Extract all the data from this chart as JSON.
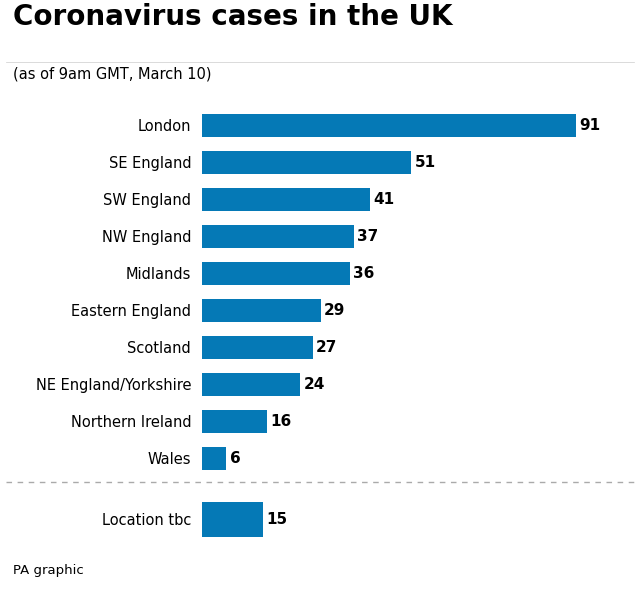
{
  "title": "Coronavirus cases in the UK",
  "subtitle": "(as of 9am GMT, March 10)",
  "footer": "PA graphic",
  "bar_color": "#0579B6",
  "background_color": "#ffffff",
  "categories": [
    "London",
    "SE England",
    "SW England",
    "NW England",
    "Midlands",
    "Eastern England",
    "Scotland",
    "NE England/Yorkshire",
    "Northern Ireland",
    "Wales"
  ],
  "values": [
    91,
    51,
    41,
    37,
    36,
    29,
    27,
    24,
    16,
    6
  ],
  "extra_category": "Location tbc",
  "extra_value": 15,
  "xlim": [
    0,
    102
  ],
  "title_fontsize": 20,
  "subtitle_fontsize": 10.5,
  "label_fontsize": 10.5,
  "value_fontsize": 11,
  "footer_fontsize": 9.5
}
